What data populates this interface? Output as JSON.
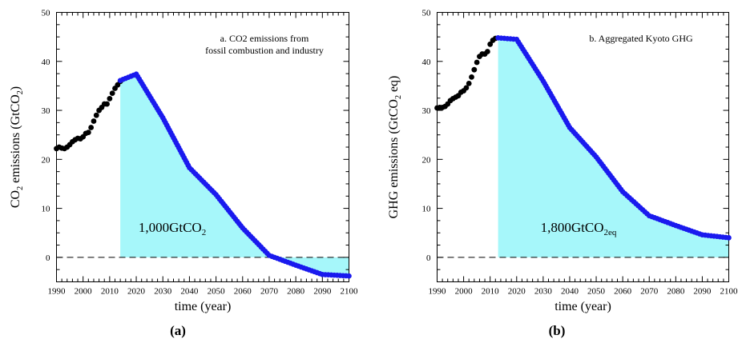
{
  "chart_data": [
    {
      "type": "line",
      "panel_label": "(a)",
      "title_line1": "a. CO2 emissions from",
      "title_line2": "fossil combustion and industry",
      "xlabel": "time (year)",
      "ylabel_main": "CO",
      "ylabel_sub": "2",
      "ylabel_rest": " emissions (GtCO",
      "ylabel_sub2": "2",
      "ylabel_end": ")",
      "area_label_main": "1,000GtCO",
      "area_label_sub": "2",
      "xlim": [
        1990,
        2100
      ],
      "ylim": [
        -5,
        50
      ],
      "xticks": [
        1990,
        2000,
        2010,
        2020,
        2030,
        2040,
        2050,
        2060,
        2070,
        2080,
        2090,
        2100
      ],
      "yticks": [
        0,
        10,
        20,
        30,
        40,
        50
      ],
      "historical": {
        "x": [
          1990,
          1991,
          1992,
          1993,
          1994,
          1995,
          1996,
          1997,
          1998,
          1999,
          2000,
          2001,
          2002,
          2003,
          2004,
          2005,
          2006,
          2007,
          2008,
          2009,
          2010,
          2011,
          2012,
          2013,
          2014
        ],
        "y": [
          22.2,
          22.5,
          22.3,
          22.2,
          22.5,
          23.0,
          23.6,
          24.0,
          24.3,
          24.2,
          24.6,
          25.3,
          25.5,
          26.5,
          27.8,
          29.0,
          30.0,
          30.6,
          31.3,
          31.3,
          32.4,
          33.5,
          34.5,
          35.2,
          35.9
        ]
      },
      "projection": {
        "x": [
          2014,
          2020,
          2030,
          2040,
          2050,
          2060,
          2070,
          2080,
          2090,
          2100
        ],
        "y": [
          36.1,
          37.4,
          28.5,
          18.3,
          12.8,
          6.0,
          0.4,
          -1.6,
          -3.5,
          -3.8
        ]
      },
      "fill_start_year": 2014,
      "hist_color": "#000000",
      "proj_color": "#1a1aee",
      "fill_color": "#a6f7fa"
    },
    {
      "type": "line",
      "panel_label": "(b)",
      "title_line1": "b. Aggregated Kyoto GHG",
      "xlabel": "time (year)",
      "ylabel_main": "GHG emissions (GtCO",
      "ylabel_sub": "2",
      "ylabel_rest": " eq)",
      "area_label_main": "1,800GtCO",
      "area_label_sub": "2eq",
      "xlim": [
        1990,
        2100
      ],
      "ylim": [
        -5,
        50
      ],
      "xticks": [
        1990,
        2000,
        2010,
        2020,
        2030,
        2040,
        2050,
        2060,
        2070,
        2080,
        2090,
        2100
      ],
      "yticks": [
        0,
        10,
        20,
        30,
        40,
        50
      ],
      "historical": {
        "x": [
          1990,
          1991,
          1992,
          1993,
          1994,
          1995,
          1996,
          1997,
          1998,
          1999,
          2000,
          2001,
          2002,
          2003,
          2004,
          2005,
          2006,
          2007,
          2008,
          2009,
          2010,
          2011,
          2012
        ],
        "y": [
          30.5,
          30.6,
          30.6,
          30.8,
          31.3,
          32.0,
          32.4,
          32.7,
          33.0,
          33.7,
          34.0,
          34.6,
          35.5,
          36.8,
          38.3,
          39.8,
          41.0,
          41.5,
          41.5,
          42.0,
          43.5,
          44.3,
          44.7
        ]
      },
      "projection": {
        "x": [
          2013,
          2020,
          2030,
          2040,
          2050,
          2060,
          2070,
          2080,
          2090,
          2100
        ],
        "y": [
          44.8,
          44.5,
          36.0,
          26.5,
          20.5,
          13.4,
          8.5,
          6.5,
          4.6,
          4.0
        ]
      },
      "fill_start_year": 2013,
      "hist_color": "#000000",
      "proj_color": "#1a1aee",
      "fill_color": "#a6f7fa"
    }
  ]
}
